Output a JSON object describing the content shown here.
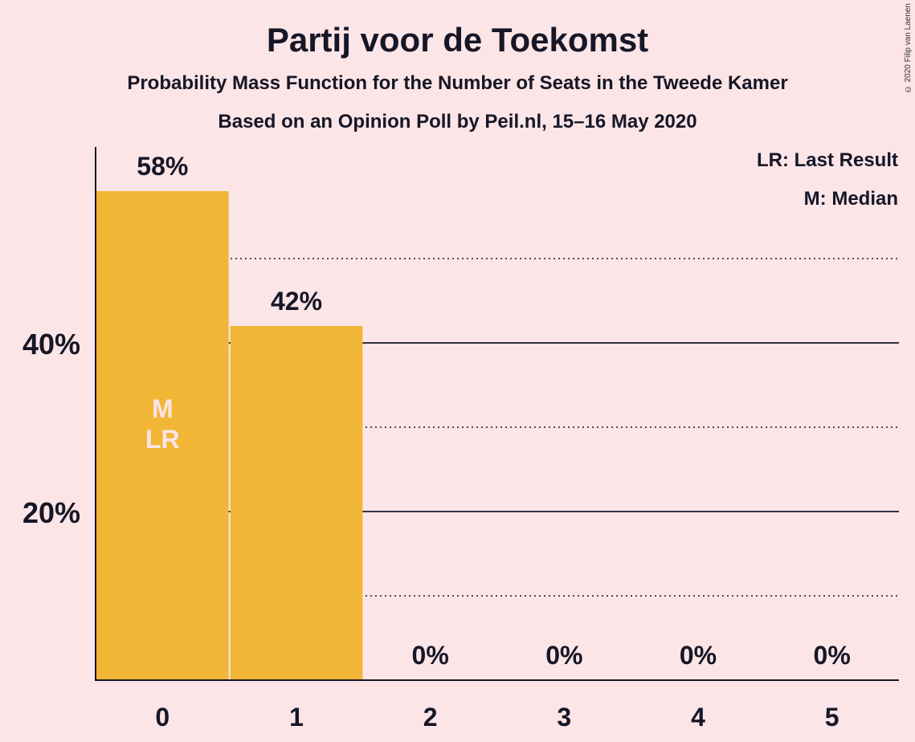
{
  "title": "Partij voor de Toekomst",
  "subtitle": "Probability Mass Function for the Number of Seats in the Tweede Kamer",
  "subtitle2": "Based on an Opinion Poll by Peil.nl, 15–16 May 2020",
  "copyright": "© 2020 Filip van Laenen",
  "legend": {
    "last_result": "LR: Last Result",
    "median": "M: Median"
  },
  "colors": {
    "bar": "#f2b636",
    "background": "#fbe5e7",
    "text": "#161626",
    "bar_label": "#fbe5e7"
  },
  "chart_data": {
    "type": "bar",
    "categories": [
      "0",
      "1",
      "2",
      "3",
      "4",
      "5"
    ],
    "values": [
      58,
      42,
      0,
      0,
      0,
      0
    ],
    "value_labels": [
      "58%",
      "42%",
      "0%",
      "0%",
      "0%",
      "0%"
    ],
    "ylim": [
      0,
      63
    ],
    "y_ticks": [
      {
        "value": 20,
        "label": "20%"
      },
      {
        "value": 40,
        "label": "40%"
      }
    ],
    "minor_gridlines": [
      10,
      30,
      50
    ],
    "bar_annotations": [
      {
        "category": "0",
        "lines": [
          "M",
          "LR"
        ]
      }
    ],
    "xlabel": "",
    "ylabel": ""
  }
}
